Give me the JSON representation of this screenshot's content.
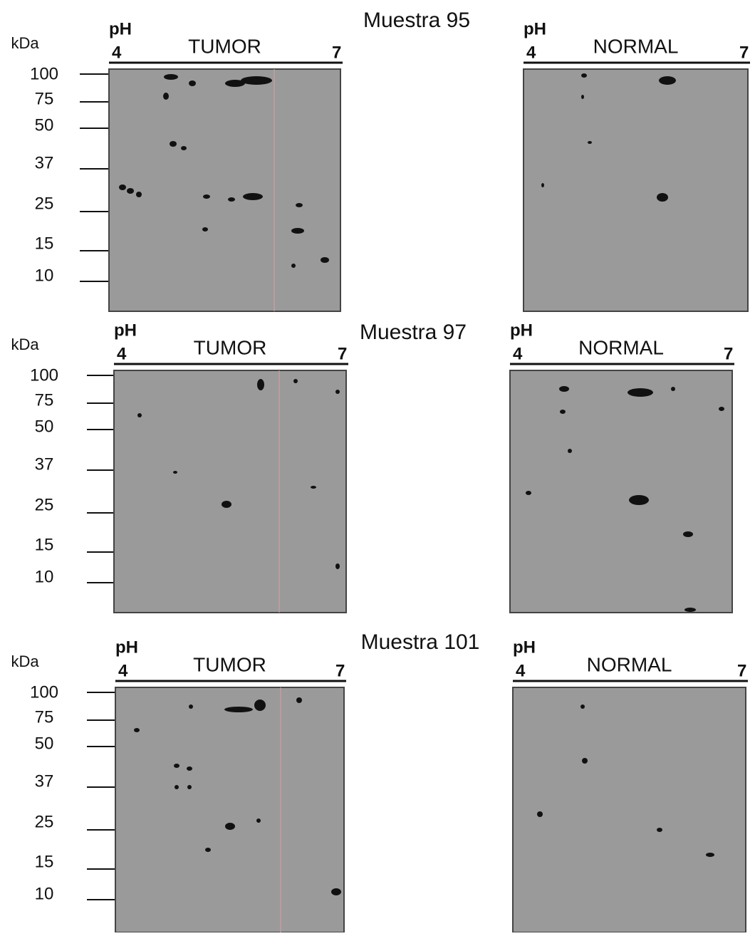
{
  "samples": [
    {
      "title": "Muestra 95",
      "unit": "kDa",
      "markers": [
        "100",
        "75",
        "50",
        "37",
        "25",
        "15",
        "10"
      ],
      "panels": [
        {
          "ph": "pH",
          "ph_low": "4",
          "ph_high": "7",
          "label": "TUMOR"
        },
        {
          "ph": "pH",
          "ph_low": "4",
          "ph_high": "7",
          "label": "NORMAL"
        }
      ]
    },
    {
      "title": "Muestra 97",
      "unit": "kDa",
      "markers": [
        "100",
        "75",
        "50",
        "37",
        "25",
        "15",
        "10"
      ],
      "panels": [
        {
          "ph": "pH",
          "ph_low": "4",
          "ph_high": "7",
          "label": "TUMOR"
        },
        {
          "ph": "pH",
          "ph_low": "4",
          "ph_high": "7",
          "label": "NORMAL"
        }
      ]
    },
    {
      "title": "Muestra 101",
      "unit": "kDa",
      "markers": [
        "100",
        "75",
        "50",
        "37",
        "25",
        "15",
        "10"
      ],
      "panels": [
        {
          "ph": "pH",
          "ph_low": "4",
          "ph_high": "7",
          "label": "TUMOR"
        },
        {
          "ph": "pH",
          "ph_low": "4",
          "ph_high": "7",
          "label": "NORMAL"
        }
      ]
    }
  ]
}
